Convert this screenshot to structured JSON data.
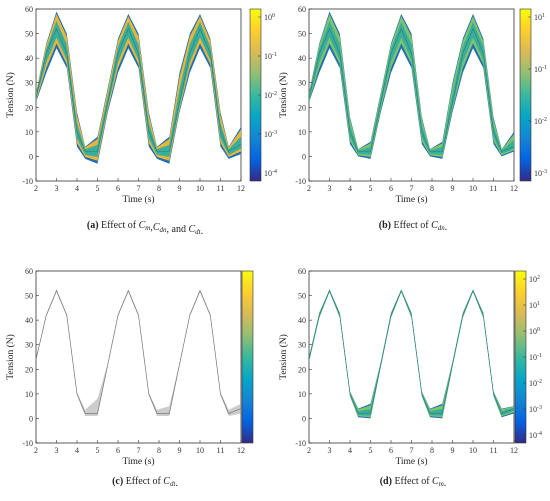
{
  "colorbar_colors": [
    "#352a87",
    "#0363e1",
    "#1485d4",
    "#06a7c6",
    "#38b99e",
    "#92bf73",
    "#d9ba56",
    "#fcce2e",
    "#f9fb0e"
  ],
  "chart_data": [
    {
      "type": "area",
      "panel": "a",
      "caption_label": "(a)",
      "caption_text": "Effect of Cm,Cdn, and Cdt.",
      "xlabel": "Time (s)",
      "ylabel": "Tension (N)",
      "xlim": [
        2,
        12
      ],
      "ylim": [
        -10,
        60
      ],
      "xticks": [
        2,
        3,
        4,
        5,
        6,
        7,
        8,
        9,
        10,
        11,
        12
      ],
      "yticks": [
        -10,
        0,
        10,
        20,
        30,
        40,
        50,
        60
      ],
      "colorbar_labels": [
        "10^0",
        "10^-1",
        "10^-2",
        "10^-3",
        "10^-4"
      ],
      "colorbar_scale": "log",
      "envelope": {
        "x": [
          2.0,
          2.5,
          3.0,
          3.5,
          4.0,
          4.4,
          5.0,
          5.5,
          6.0,
          6.5,
          7.0,
          7.5,
          7.9,
          8.5,
          9.0,
          9.5,
          10.0,
          10.5,
          11.0,
          11.4,
          12.0
        ],
        "upper": [
          26,
          46,
          59,
          50,
          18,
          4,
          8,
          28,
          48,
          58,
          50,
          18,
          4,
          8,
          34,
          50,
          58,
          48,
          18,
          4,
          12
        ],
        "median": [
          24,
          42,
          52,
          42,
          10,
          2,
          2,
          22,
          42,
          52,
          42,
          10,
          2,
          2,
          22,
          42,
          52,
          42,
          10,
          2,
          5
        ],
        "lower": [
          22,
          34,
          44,
          36,
          4,
          -1,
          -3,
          18,
          34,
          44,
          36,
          4,
          -1,
          -3,
          18,
          34,
          44,
          36,
          4,
          -1,
          1
        ]
      }
    },
    {
      "type": "area",
      "panel": "b",
      "caption_label": "(b)",
      "caption_text": "Effect of Cdn.",
      "xlabel": "Time (s)",
      "ylabel": "Tension (N)",
      "xlim": [
        2,
        12
      ],
      "ylim": [
        -10,
        60
      ],
      "xticks": [
        2,
        3,
        4,
        5,
        6,
        7,
        8,
        9,
        10,
        11,
        12
      ],
      "yticks": [
        -10,
        0,
        10,
        20,
        30,
        40,
        50,
        60
      ],
      "colorbar_labels": [
        "10^1",
        "10^-1",
        "10^-2",
        "10^-3"
      ],
      "colorbar_scale": "log",
      "envelope": {
        "x": [
          2.0,
          2.5,
          3.0,
          3.5,
          4.0,
          4.4,
          5.0,
          5.5,
          6.0,
          6.5,
          7.0,
          7.5,
          7.9,
          8.5,
          9.0,
          9.5,
          10.0,
          10.5,
          11.0,
          11.4,
          12.0
        ],
        "upper": [
          26,
          46,
          59,
          50,
          16,
          3,
          6,
          26,
          46,
          58,
          50,
          16,
          3,
          6,
          30,
          48,
          58,
          48,
          16,
          3,
          10
        ],
        "median": [
          24,
          42,
          52,
          42,
          10,
          2,
          2,
          22,
          42,
          52,
          42,
          10,
          2,
          2,
          22,
          42,
          52,
          42,
          10,
          2,
          4
        ],
        "lower": [
          22,
          34,
          44,
          36,
          5,
          0,
          -1,
          18,
          34,
          44,
          36,
          5,
          0,
          -1,
          18,
          34,
          44,
          36,
          5,
          0,
          2
        ]
      }
    },
    {
      "type": "area",
      "panel": "c",
      "caption_label": "(c)",
      "caption_text": "Effect of Cdt.",
      "xlabel": "Time (s)",
      "ylabel": "Tension (N)",
      "xlim": [
        2,
        12
      ],
      "ylim": [
        -10,
        60
      ],
      "xticks": [
        2,
        3,
        4,
        5,
        6,
        7,
        8,
        9,
        10,
        11,
        12
      ],
      "yticks": [
        -10,
        0,
        10,
        20,
        30,
        40,
        50,
        60
      ],
      "colorbar_labels": [],
      "colorbar_scale": "log",
      "envelope": {
        "x": [
          2.0,
          2.5,
          3.0,
          3.5,
          4.0,
          4.4,
          5.0,
          5.5,
          6.0,
          6.5,
          7.0,
          7.5,
          7.9,
          8.5,
          9.0,
          9.5,
          10.0,
          10.5,
          11.0,
          11.4,
          12.0
        ],
        "upper": [
          24.5,
          42.5,
          52.5,
          42.5,
          10.5,
          3.5,
          8,
          22.5,
          42.5,
          52.5,
          42.5,
          10.5,
          3.5,
          5,
          22.5,
          42.5,
          52.5,
          42.5,
          10.5,
          3.5,
          6
        ],
        "median": [
          24,
          42,
          52,
          42,
          10,
          2,
          2,
          22,
          42,
          52,
          42,
          10,
          2,
          2,
          22,
          42,
          52,
          42,
          10,
          2,
          4
        ],
        "lower": [
          23.5,
          41.5,
          51.5,
          41.5,
          9.5,
          1,
          1,
          21.5,
          41.5,
          51.5,
          41.5,
          9.5,
          1,
          1,
          21.5,
          41.5,
          51.5,
          41.5,
          9.5,
          1,
          2
        ]
      }
    },
    {
      "type": "area",
      "panel": "d",
      "caption_label": "(d)",
      "caption_text": "Effect of Cm.",
      "xlabel": "Time (s)",
      "ylabel": "Tension (N)",
      "xlim": [
        2,
        12
      ],
      "ylim": [
        -10,
        60
      ],
      "xticks": [
        2,
        3,
        4,
        5,
        6,
        7,
        8,
        9,
        10,
        11,
        12
      ],
      "yticks": [
        -10,
        0,
        10,
        20,
        30,
        40,
        50,
        60
      ],
      "colorbar_labels": [
        "10^2",
        "10^1",
        "10^0",
        "10^-1",
        "10^-2",
        "10^-3",
        "10^-4"
      ],
      "colorbar_scale": "log",
      "envelope": {
        "x": [
          2.0,
          2.5,
          3.0,
          3.5,
          4.0,
          4.4,
          5.0,
          5.5,
          6.0,
          6.5,
          7.0,
          7.5,
          7.9,
          8.5,
          9.0,
          9.5,
          10.0,
          10.5,
          11.0,
          11.4,
          12.0
        ],
        "upper": [
          25,
          43,
          52.5,
          43,
          11,
          4,
          6,
          23,
          43,
          52.5,
          43,
          11,
          4,
          6,
          23,
          43,
          52.5,
          43,
          11,
          4,
          5
        ],
        "median": [
          24,
          42,
          52,
          42,
          10,
          2,
          2,
          22,
          42,
          52,
          42,
          10,
          2,
          2,
          22,
          42,
          52,
          42,
          10,
          2,
          4
        ],
        "lower": [
          23,
          41,
          51.5,
          41,
          9,
          0.5,
          0,
          21,
          41,
          51.5,
          41,
          9,
          0.5,
          0,
          21,
          41,
          51.5,
          41,
          9,
          0.5,
          2
        ]
      }
    }
  ]
}
